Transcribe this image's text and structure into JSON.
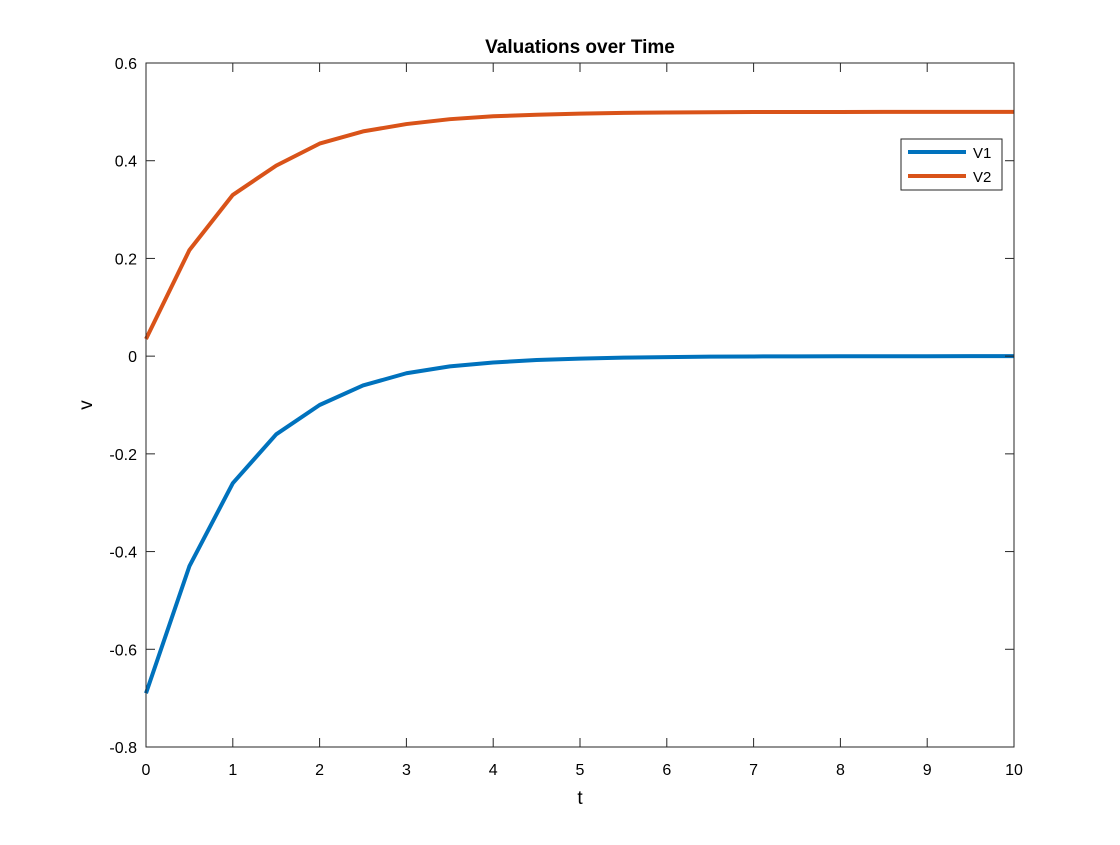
{
  "chart_data": {
    "type": "line",
    "title": "Valuations over Time",
    "xlabel": "t",
    "ylabel": "v",
    "xlim": [
      0,
      10
    ],
    "ylim": [
      -0.8,
      0.6
    ],
    "xticks": [
      0,
      1,
      2,
      3,
      4,
      5,
      6,
      7,
      8,
      9,
      10
    ],
    "xtick_labels": [
      "0",
      "1",
      "2",
      "3",
      "4",
      "5",
      "6",
      "7",
      "8",
      "9",
      "10"
    ],
    "yticks": [
      -0.8,
      -0.6,
      -0.4,
      -0.2,
      0,
      0.2,
      0.4,
      0.6
    ],
    "ytick_labels": [
      "-0.8",
      "-0.6",
      "-0.4",
      "-0.2",
      "0",
      "0.2",
      "0.4",
      "0.6"
    ],
    "grid": false,
    "legend_position": "top-right",
    "x": [
      0,
      0.5,
      1,
      1.5,
      2,
      2.5,
      3,
      3.5,
      4,
      4.5,
      5,
      5.5,
      6,
      6.5,
      7,
      7.5,
      8,
      8.5,
      9,
      9.5,
      10
    ],
    "series": [
      {
        "name": "V1",
        "color": "#0072BD",
        "values": [
          -0.69,
          -0.43,
          -0.26,
          -0.16,
          -0.1,
          -0.06,
          -0.035,
          -0.021,
          -0.013,
          -0.008,
          -0.005,
          -0.003,
          -0.002,
          -0.001,
          -0.0006,
          -0.0004,
          -0.0002,
          -0.0001,
          -0.0001,
          0,
          0
        ]
      },
      {
        "name": "V2",
        "color": "#D95319",
        "values": [
          0.035,
          0.217,
          0.33,
          0.39,
          0.435,
          0.46,
          0.475,
          0.485,
          0.491,
          0.494,
          0.4965,
          0.498,
          0.4988,
          0.4993,
          0.4996,
          0.4997,
          0.4998,
          0.4999,
          0.4999,
          0.5,
          0.5
        ]
      }
    ]
  }
}
